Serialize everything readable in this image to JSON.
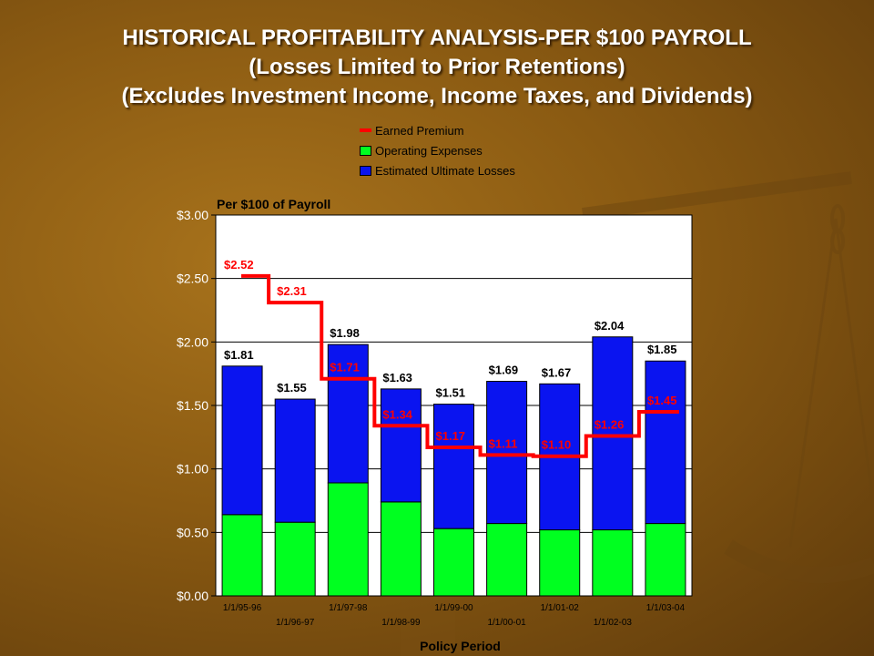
{
  "page": {
    "title_lines": [
      "HISTORICAL PROFITABILITY ANALYSIS-PER $100 PAYROLL",
      "(Losses Limited to Prior Retentions)",
      "(Excludes Investment Income, Income Taxes, and Dividends)"
    ]
  },
  "colors": {
    "losses": "#0a14f0",
    "expenses": "#00ff20",
    "premium": "#ff0000",
    "plot_bg": "#ffffff",
    "title_text": "#ffffff"
  },
  "chart_data": {
    "type": "bar",
    "subtype": "stacked-bar-with-step-line",
    "title": "Per $100 of Payroll",
    "xlabel": "Policy Period",
    "ylabel": "",
    "ylim": [
      0,
      3.0
    ],
    "y_ticks": [
      "$0.00",
      "$0.50",
      "$1.00",
      "$1.50",
      "$2.00",
      "$2.50",
      "$3.00"
    ],
    "y_tick_values": [
      0,
      0.5,
      1.0,
      1.5,
      2.0,
      2.5,
      3.0
    ],
    "grid": true,
    "legend_position": "top",
    "categories": [
      "1/1/95-96",
      "1/1/96-97",
      "1/1/97-98",
      "1/1/98-99",
      "1/1/99-00",
      "1/1/00-01",
      "1/1/01-02",
      "1/1/02-03",
      "1/1/03-04"
    ],
    "series": [
      {
        "name": "Operating Expenses",
        "kind": "bar",
        "values": [
          0.64,
          0.58,
          0.89,
          0.74,
          0.53,
          0.57,
          0.52,
          0.52,
          0.57
        ]
      },
      {
        "name": "Estimated Ultimate Losses",
        "kind": "bar",
        "values": [
          1.17,
          0.97,
          1.09,
          0.89,
          0.98,
          1.12,
          1.15,
          1.52,
          1.28
        ]
      },
      {
        "name": "Earned Premium",
        "kind": "step-line",
        "values": [
          2.52,
          2.31,
          1.71,
          1.34,
          1.17,
          1.11,
          1.1,
          1.26,
          1.45
        ]
      }
    ],
    "total_labels": [
      "$1.81",
      "$1.55",
      "$1.98",
      "$1.63",
      "$1.51",
      "$1.69",
      "$1.67",
      "$2.04",
      "$1.85"
    ],
    "premium_labels": [
      "$2.52",
      "$2.31",
      "$1.71",
      "$1.34",
      "$1.17",
      "$1.11",
      "$1.10",
      "$1.26",
      "$1.45"
    ],
    "legend": [
      "Earned Premium",
      "Operating Expenses",
      "Estimated Ultimate Losses"
    ]
  }
}
